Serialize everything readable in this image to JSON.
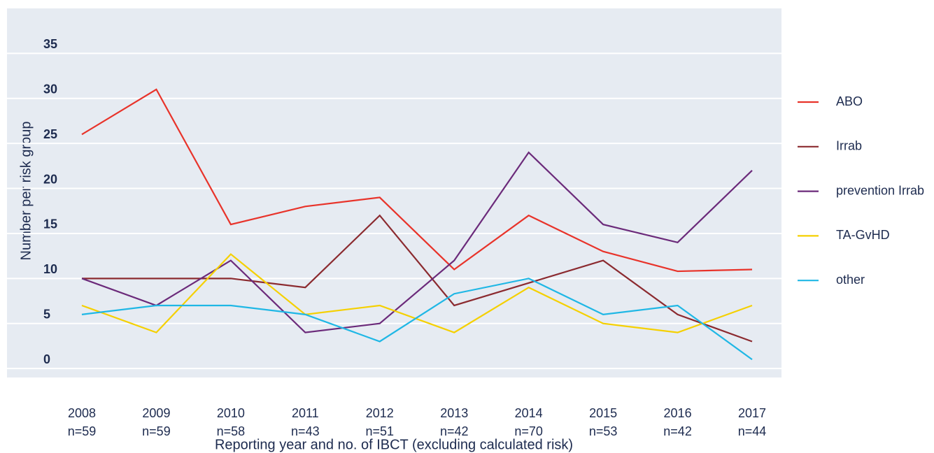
{
  "chart_data": {
    "type": "line",
    "y_label": "Number per risk group",
    "x_label": "Reporting year and no. of IBCT (excluding calculated risk)",
    "categories": [
      "2008",
      "2009",
      "2010",
      "2011",
      "2012",
      "2013",
      "2014",
      "2015",
      "2016",
      "2017"
    ],
    "counts": [
      "n=59",
      "n=59",
      "n=58",
      "n=43",
      "n=51",
      "n=42",
      "n=70",
      "n=53",
      "n=42",
      "n=44"
    ],
    "ylim": [
      -1,
      40
    ],
    "yticks": [
      0,
      5,
      10,
      15,
      20,
      25,
      30,
      35
    ],
    "grid": true,
    "legend": "right",
    "series": [
      {
        "name": "ABO",
        "color": "#e8332a",
        "values": [
          26,
          31,
          16,
          18,
          19,
          11,
          17,
          13,
          10.8,
          11
        ]
      },
      {
        "name": "Irrab",
        "color": "#8b2a2f",
        "values": [
          10,
          10,
          10,
          9,
          17,
          7,
          9.5,
          12,
          6,
          3
        ]
      },
      {
        "name": "prevention Irrab",
        "color": "#6b2a7a",
        "values": [
          10,
          7,
          12,
          4,
          5,
          12,
          24,
          16,
          14,
          22
        ]
      },
      {
        "name": "TA-GvHD",
        "color": "#f5d000",
        "values": [
          7,
          4,
          12.7,
          6,
          7,
          4,
          9,
          5,
          4,
          7
        ]
      },
      {
        "name": "other",
        "color": "#1fb7e5",
        "values": [
          6,
          7,
          7,
          6,
          3,
          8.3,
          10,
          6,
          7,
          1
        ]
      }
    ]
  }
}
